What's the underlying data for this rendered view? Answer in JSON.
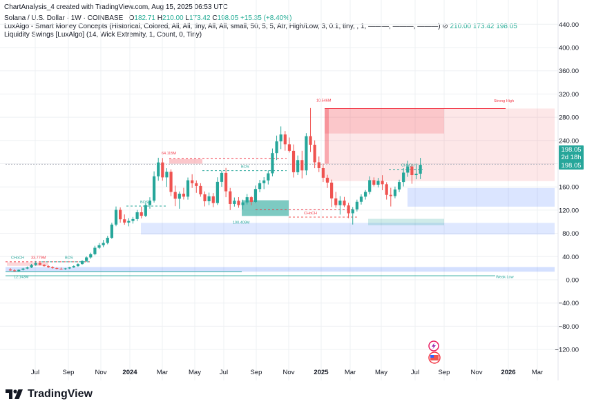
{
  "header": {
    "created_line": "ChartAnalysis_4 created with TradingView.com, Aug 15, 2025 06:53 UTC",
    "symbol": "Solana / U.S. Dollar · 1W · COINBASE",
    "o_label": "O",
    "o_value": "182.71",
    "h_label": "H",
    "h_value": "210.00",
    "l_label": "L",
    "l_value": "173.42",
    "c_label": "C",
    "c_value": "198.05",
    "change": "+15.35 (+8.40%)",
    "indicator1": "LuxAlgo - Smart Money Concepts (Historical, Colored, All, All, tiny, All, All, small, 50, 5, 5, Atr, High/Low, 3, 0.1, tiny, , 1, ———, ———, ———)",
    "indicator1_values": [
      "210.00",
      "173.42",
      "198.05"
    ],
    "indicator2": "Liquidity Swings [LuxAlgo] (14, Wick Extremity, 1, Count, 0, Tiny)"
  },
  "price_badge": {
    "price": "198.05",
    "countdown": "2d 18h",
    "price2": "198.05"
  },
  "brand": {
    "name": "TradingView"
  },
  "colors": {
    "up": "#26a69a",
    "down": "#ef5350",
    "bull_zone": "#2962ff",
    "bear_zone": "#f23645",
    "grid": "#eef0f3"
  },
  "chart_data": {
    "type": "candlestick",
    "x_ticks": [
      "Jul",
      "Sep",
      "Nov",
      "2024",
      "Mar",
      "May",
      "Jul",
      "Sep",
      "Nov",
      "2025",
      "Mar",
      "May",
      "Jul",
      "Sep",
      "Nov",
      "2026",
      "Mar"
    ],
    "y_ticks": [
      "440.00",
      "400.00",
      "360.00",
      "320.00",
      "280.00",
      "240.00",
      "200.00",
      "160.00",
      "120.00",
      "80.00",
      "40.00",
      "0.00",
      "−40.00",
      "−80.00",
      "−120.00"
    ],
    "ylim": [
      -140,
      450
    ],
    "grid": true,
    "annotations": [
      "CHoCH",
      "33.779M",
      "BOS",
      "12.143M",
      "BOS",
      "64.115M",
      "BOS",
      "100.409M",
      "CHoCH",
      "10.546M",
      "Strong High",
      "CHoCH",
      "Weak Low"
    ],
    "candles": [
      {
        "o": 17.8,
        "h": 20.1,
        "l": 15.6,
        "c": 16.2
      },
      {
        "o": 16.2,
        "h": 18.4,
        "l": 13.8,
        "c": 15.1
      },
      {
        "o": 15.1,
        "h": 17.9,
        "l": 14.2,
        "c": 17.2
      },
      {
        "o": 17.2,
        "h": 20.6,
        "l": 16.1,
        "c": 19.4
      },
      {
        "o": 19.4,
        "h": 22.8,
        "l": 18.3,
        "c": 21.3
      },
      {
        "o": 21.3,
        "h": 27.4,
        "l": 20.2,
        "c": 25.6
      },
      {
        "o": 25.6,
        "h": 32.2,
        "l": 24.1,
        "c": 28.8
      },
      {
        "o": 28.8,
        "h": 30.1,
        "l": 24.8,
        "c": 25.7
      },
      {
        "o": 25.7,
        "h": 26.9,
        "l": 22.7,
        "c": 23.6
      },
      {
        "o": 23.6,
        "h": 25.1,
        "l": 20.4,
        "c": 21.8
      },
      {
        "o": 21.8,
        "h": 23.4,
        "l": 19.2,
        "c": 20.1
      },
      {
        "o": 20.1,
        "h": 21.6,
        "l": 17.8,
        "c": 19.1
      },
      {
        "o": 19.1,
        "h": 21.1,
        "l": 17.6,
        "c": 18.4
      },
      {
        "o": 18.4,
        "h": 20.4,
        "l": 17.1,
        "c": 19.6
      },
      {
        "o": 19.6,
        "h": 22.3,
        "l": 18.6,
        "c": 21.4
      },
      {
        "o": 21.4,
        "h": 24.9,
        "l": 20.5,
        "c": 23.6
      },
      {
        "o": 23.6,
        "h": 28.6,
        "l": 22.4,
        "c": 27.1
      },
      {
        "o": 27.1,
        "h": 33.5,
        "l": 26.3,
        "c": 32.4
      },
      {
        "o": 32.4,
        "h": 40.2,
        "l": 31.1,
        "c": 38.6
      },
      {
        "o": 38.6,
        "h": 46.7,
        "l": 36.2,
        "c": 44.1
      },
      {
        "o": 44.1,
        "h": 58.6,
        "l": 42.3,
        "c": 55.2
      },
      {
        "o": 55.2,
        "h": 63.4,
        "l": 53.1,
        "c": 59.6
      },
      {
        "o": 59.6,
        "h": 68.8,
        "l": 56.2,
        "c": 63.5
      },
      {
        "o": 63.5,
        "h": 75.6,
        "l": 61.1,
        "c": 72.4
      },
      {
        "o": 72.4,
        "h": 98.2,
        "l": 70.4,
        "c": 95.1
      },
      {
        "o": 95.1,
        "h": 126.2,
        "l": 92.3,
        "c": 120.5
      },
      {
        "o": 120.5,
        "h": 124.8,
        "l": 98.4,
        "c": 104.2
      },
      {
        "o": 104.2,
        "h": 112.6,
        "l": 94.8,
        "c": 98.6
      },
      {
        "o": 98.6,
        "h": 106.2,
        "l": 92.1,
        "c": 101.4
      },
      {
        "o": 101.4,
        "h": 108.3,
        "l": 96.8,
        "c": 104.6
      },
      {
        "o": 104.6,
        "h": 120.4,
        "l": 101.2,
        "c": 116.3
      },
      {
        "o": 116.3,
        "h": 126.1,
        "l": 105.8,
        "c": 110.2
      },
      {
        "o": 110.2,
        "h": 132.1,
        "l": 108.1,
        "c": 128.8
      },
      {
        "o": 128.8,
        "h": 142.2,
        "l": 122.5,
        "c": 136.4
      },
      {
        "o": 136.4,
        "h": 186.8,
        "l": 133.1,
        "c": 178.2
      },
      {
        "o": 178.2,
        "h": 210.2,
        "l": 170.6,
        "c": 202.1
      },
      {
        "o": 202.1,
        "h": 209.8,
        "l": 170.8,
        "c": 176.4
      },
      {
        "o": 176.4,
        "h": 192.2,
        "l": 160.1,
        "c": 186.1
      },
      {
        "o": 186.1,
        "h": 190.3,
        "l": 144.2,
        "c": 151.3
      },
      {
        "o": 151.3,
        "h": 162.2,
        "l": 126.8,
        "c": 139.6
      },
      {
        "o": 139.6,
        "h": 152.1,
        "l": 122.4,
        "c": 148.3
      },
      {
        "o": 148.3,
        "h": 158.4,
        "l": 138.3,
        "c": 143.2
      },
      {
        "o": 143.2,
        "h": 176.2,
        "l": 138.1,
        "c": 171.4
      },
      {
        "o": 171.4,
        "h": 181.8,
        "l": 158.2,
        "c": 166.3
      },
      {
        "o": 166.3,
        "h": 171.2,
        "l": 149.8,
        "c": 161.6
      },
      {
        "o": 161.6,
        "h": 166.4,
        "l": 143.1,
        "c": 147.2
      },
      {
        "o": 147.2,
        "h": 152.2,
        "l": 126.4,
        "c": 135.3
      },
      {
        "o": 135.3,
        "h": 150.2,
        "l": 128.6,
        "c": 143.8
      },
      {
        "o": 143.8,
        "h": 149.4,
        "l": 125.2,
        "c": 132.2
      },
      {
        "o": 132.2,
        "h": 176.6,
        "l": 128.9,
        "c": 168.7
      },
      {
        "o": 168.7,
        "h": 188.2,
        "l": 160.2,
        "c": 184.1
      },
      {
        "o": 184.1,
        "h": 192.6,
        "l": 142.3,
        "c": 152.4
      },
      {
        "o": 152.4,
        "h": 158.2,
        "l": 120.1,
        "c": 130.6
      },
      {
        "o": 130.6,
        "h": 141.8,
        "l": 126.1,
        "c": 136.2
      },
      {
        "o": 136.2,
        "h": 142.4,
        "l": 124.1,
        "c": 128.7
      },
      {
        "o": 128.7,
        "h": 138.1,
        "l": 121.2,
        "c": 133.3
      },
      {
        "o": 133.3,
        "h": 147.8,
        "l": 129.8,
        "c": 142.3
      },
      {
        "o": 142.3,
        "h": 144.2,
        "l": 128.4,
        "c": 134.1
      },
      {
        "o": 134.1,
        "h": 162.3,
        "l": 132.2,
        "c": 156.4
      },
      {
        "o": 156.4,
        "h": 172.1,
        "l": 150.8,
        "c": 166.4
      },
      {
        "o": 166.4,
        "h": 176.8,
        "l": 156.2,
        "c": 171.2
      },
      {
        "o": 171.2,
        "h": 188.4,
        "l": 164.2,
        "c": 183.4
      },
      {
        "o": 183.4,
        "h": 226.1,
        "l": 178.3,
        "c": 218.2
      },
      {
        "o": 218.2,
        "h": 248.4,
        "l": 206.3,
        "c": 238.4
      },
      {
        "o": 238.4,
        "h": 264.2,
        "l": 225.1,
        "c": 250.3
      },
      {
        "o": 250.3,
        "h": 256.2,
        "l": 222.4,
        "c": 233.4
      },
      {
        "o": 233.4,
        "h": 245.1,
        "l": 219.2,
        "c": 222.1
      },
      {
        "o": 222.1,
        "h": 233.1,
        "l": 176.2,
        "c": 185.3
      },
      {
        "o": 185.3,
        "h": 214.1,
        "l": 180.4,
        "c": 206.2
      },
      {
        "o": 206.2,
        "h": 222.2,
        "l": 174.6,
        "c": 188.4
      },
      {
        "o": 188.4,
        "h": 252.6,
        "l": 180.2,
        "c": 247.4
      },
      {
        "o": 247.4,
        "h": 295.8,
        "l": 220.1,
        "c": 232.6
      },
      {
        "o": 232.6,
        "h": 240.2,
        "l": 192.2,
        "c": 202.4
      },
      {
        "o": 202.4,
        "h": 212.4,
        "l": 185.4,
        "c": 192.3
      },
      {
        "o": 192.3,
        "h": 200.2,
        "l": 168.4,
        "c": 175.8
      },
      {
        "o": 175.8,
        "h": 180.8,
        "l": 158.2,
        "c": 167.4
      },
      {
        "o": 167.4,
        "h": 172.6,
        "l": 125.3,
        "c": 140.2
      },
      {
        "o": 140.2,
        "h": 151.4,
        "l": 124.1,
        "c": 128.6
      },
      {
        "o": 128.6,
        "h": 144.1,
        "l": 112.3,
        "c": 136.4
      },
      {
        "o": 136.4,
        "h": 142.8,
        "l": 125.2,
        "c": 128.1
      },
      {
        "o": 128.1,
        "h": 132.6,
        "l": 106.2,
        "c": 114.6
      },
      {
        "o": 114.6,
        "h": 125.4,
        "l": 95.2,
        "c": 121.3
      },
      {
        "o": 121.3,
        "h": 138.1,
        "l": 117.6,
        "c": 134.4
      },
      {
        "o": 134.4,
        "h": 147.2,
        "l": 129.6,
        "c": 143.2
      },
      {
        "o": 143.2,
        "h": 154.6,
        "l": 138.2,
        "c": 151.4
      },
      {
        "o": 151.4,
        "h": 178.2,
        "l": 147.1,
        "c": 171.6
      },
      {
        "o": 171.6,
        "h": 176.4,
        "l": 160.8,
        "c": 163.8
      },
      {
        "o": 163.8,
        "h": 175.6,
        "l": 159.1,
        "c": 170.4
      },
      {
        "o": 170.4,
        "h": 180.2,
        "l": 154.3,
        "c": 164.6
      },
      {
        "o": 164.6,
        "h": 168.1,
        "l": 138.2,
        "c": 146.3
      },
      {
        "o": 146.3,
        "h": 158.4,
        "l": 126.3,
        "c": 144.2
      },
      {
        "o": 144.2,
        "h": 160.6,
        "l": 140.4,
        "c": 155.6
      },
      {
        "o": 155.6,
        "h": 172.4,
        "l": 151.1,
        "c": 168.4
      },
      {
        "o": 168.4,
        "h": 192.3,
        "l": 160.8,
        "c": 184.6
      },
      {
        "o": 184.6,
        "h": 205.2,
        "l": 177.3,
        "c": 195.2
      },
      {
        "o": 195.2,
        "h": 199.4,
        "l": 165.4,
        "c": 180.4
      },
      {
        "o": 180.4,
        "h": 200.1,
        "l": 173.2,
        "c": 182.7
      },
      {
        "o": 182.71,
        "h": 210.0,
        "l": 173.42,
        "c": 198.05
      }
    ]
  }
}
